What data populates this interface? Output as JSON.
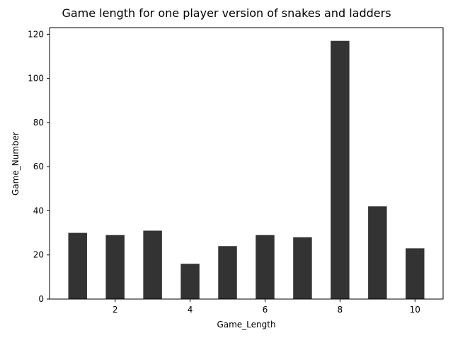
{
  "chart_data": {
    "type": "bar",
    "title": "Game length for one player version of snakes and ladders",
    "xlabel": "Game_Length",
    "ylabel": "Game_Number",
    "x": [
      1,
      2,
      3,
      4,
      5,
      6,
      7,
      8,
      9,
      10
    ],
    "values": [
      30,
      29,
      31,
      16,
      24,
      29,
      28,
      117,
      42,
      23
    ],
    "xticks": [
      2,
      4,
      6,
      8,
      10
    ],
    "yticks": [
      0,
      20,
      40,
      60,
      80,
      100,
      120
    ],
    "xlim": [
      0.25,
      10.75
    ],
    "ylim": [
      0,
      123
    ],
    "grid": false,
    "bar_color": "#333333"
  }
}
